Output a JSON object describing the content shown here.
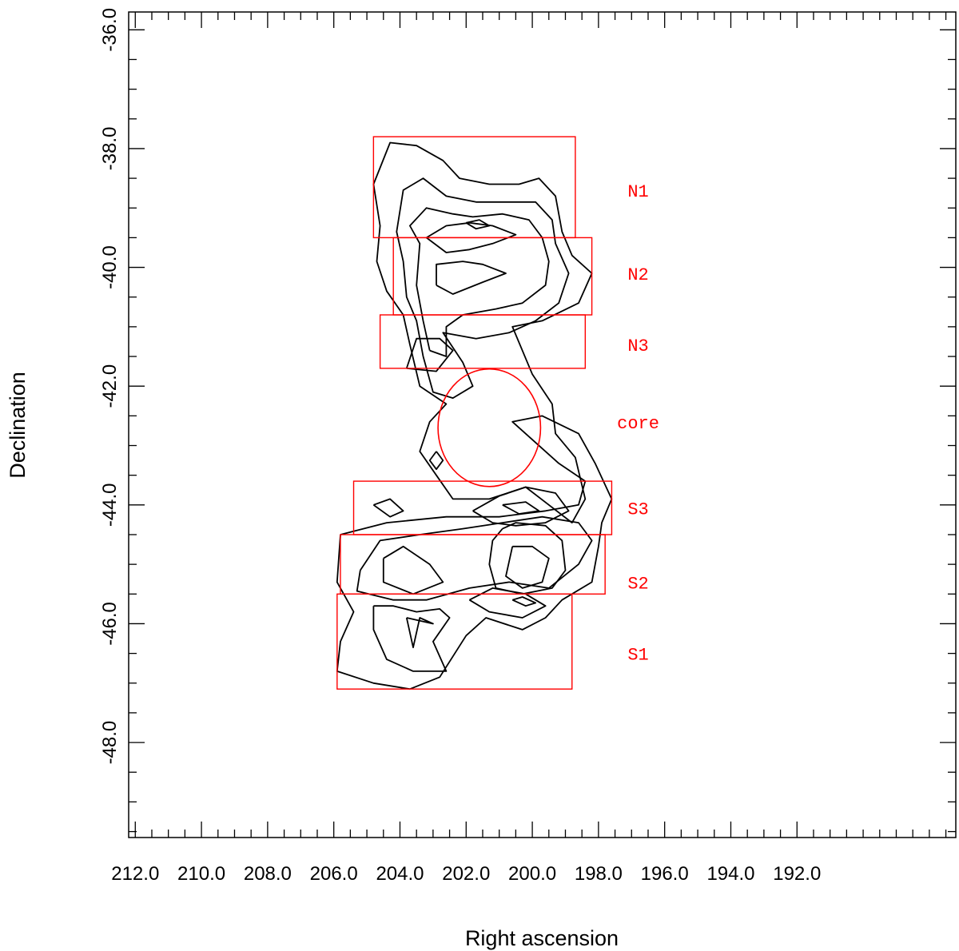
{
  "chart_data": {
    "type": "contour",
    "title": "",
    "xlabel": "Right ascension",
    "ylabel": "Declination",
    "xlim": [
      212.2,
      187.2
    ],
    "ylim": [
      -49.6,
      -35.7
    ],
    "x_reversed": true,
    "x_ticks_major": [
      212,
      210,
      208,
      206,
      204,
      202,
      200,
      198,
      196,
      194,
      192
    ],
    "x_tick_labels": [
      "212.0",
      "210.0",
      "208.0",
      "206.0",
      "204.0",
      "202.0",
      "200.0",
      "198.0",
      "196.0",
      "194.0",
      "192.0"
    ],
    "y_ticks_major": [
      -36,
      -38,
      -40,
      -42,
      -44,
      -46,
      -48
    ],
    "y_tick_labels": [
      "-36.0",
      "-38.0",
      "-40.0",
      "-42.0",
      "-44.0",
      "-46.0",
      "-48.0"
    ],
    "minor_tick_step": 0.5,
    "grid": false,
    "contour_color": "#000000",
    "region_color": "#ff0000",
    "regions": [
      {
        "label": "N1",
        "shape": "box",
        "ra": [
          204.8,
          198.7
        ],
        "dec": [
          -37.8,
          -39.5
        ]
      },
      {
        "label": "N2",
        "shape": "box",
        "ra": [
          204.2,
          198.2
        ],
        "dec": [
          -39.5,
          -40.8
        ]
      },
      {
        "label": "N3",
        "shape": "box",
        "ra": [
          204.6,
          198.4
        ],
        "dec": [
          -40.8,
          -41.7
        ]
      },
      {
        "label": "core",
        "shape": "circle",
        "center": [
          201.3,
          -42.7
        ],
        "radius_ra": 1.55,
        "radius_dec": 0.99
      },
      {
        "label": "S3",
        "shape": "box",
        "ra": [
          205.4,
          197.6
        ],
        "dec": [
          -43.6,
          -44.5
        ]
      },
      {
        "label": "S2",
        "shape": "box",
        "ra": [
          205.8,
          197.8
        ],
        "dec": [
          -44.5,
          -45.5
        ]
      },
      {
        "label": "S1",
        "shape": "box",
        "ra": [
          205.9,
          198.8
        ],
        "dec": [
          -45.5,
          -47.1
        ]
      }
    ],
    "region_label_ra": 196.8,
    "region_labels_dec": {
      "N1": -38.7,
      "N2": -40.1,
      "N3": -41.3,
      "core": -42.6,
      "S3": -44.05,
      "S2": -45.3,
      "S1": -46.5
    },
    "contours": [
      {
        "name": "north-outer",
        "points": [
          [
            203.7,
            -41.3
          ],
          [
            203.9,
            -40.8
          ],
          [
            204.4,
            -40.4
          ],
          [
            204.7,
            -39.9
          ],
          [
            204.6,
            -39.3
          ],
          [
            204.8,
            -38.6
          ],
          [
            204.3,
            -37.9
          ],
          [
            203.5,
            -37.95
          ],
          [
            202.7,
            -38.2
          ],
          [
            202.2,
            -38.5
          ],
          [
            201.3,
            -38.6
          ],
          [
            200.4,
            -38.6
          ],
          [
            199.8,
            -38.5
          ],
          [
            199.3,
            -38.8
          ],
          [
            199.1,
            -39.4
          ],
          [
            198.8,
            -39.8
          ],
          [
            198.2,
            -40.1
          ],
          [
            198.6,
            -40.6
          ],
          [
            199.7,
            -40.9
          ],
          [
            200.6,
            -41.0
          ],
          [
            200.0,
            -41.8
          ],
          [
            199.4,
            -42.3
          ],
          [
            199.3,
            -42.8
          ],
          [
            198.7,
            -43.2
          ],
          [
            198.4,
            -43.9
          ],
          [
            198.8,
            -44.3
          ],
          [
            199.5,
            -44.0
          ],
          [
            200.2,
            -43.7
          ],
          [
            201.3,
            -43.9
          ],
          [
            202.4,
            -43.9
          ],
          [
            202.9,
            -43.5
          ],
          [
            203.4,
            -43.1
          ],
          [
            203.1,
            -42.6
          ],
          [
            202.6,
            -42.3
          ],
          [
            203.4,
            -42.0
          ],
          [
            203.7,
            -41.3
          ]
        ]
      },
      {
        "name": "north-2",
        "points": [
          [
            203.3,
            -41.5
          ],
          [
            203.5,
            -40.9
          ],
          [
            203.8,
            -40.5
          ],
          [
            203.9,
            -39.9
          ],
          [
            204.1,
            -39.4
          ],
          [
            203.9,
            -38.7
          ],
          [
            203.3,
            -38.5
          ],
          [
            202.6,
            -38.8
          ],
          [
            201.7,
            -38.9
          ],
          [
            200.8,
            -38.9
          ],
          [
            199.9,
            -38.9
          ],
          [
            199.4,
            -39.2
          ],
          [
            199.3,
            -39.6
          ],
          [
            198.9,
            -40.1
          ],
          [
            199.2,
            -40.6
          ],
          [
            199.9,
            -40.9
          ],
          [
            200.7,
            -41.1
          ],
          [
            201.7,
            -41.2
          ],
          [
            202.7,
            -41.1
          ],
          [
            202.1,
            -41.6
          ],
          [
            201.8,
            -42.0
          ],
          [
            202.4,
            -42.2
          ],
          [
            203.0,
            -42.1
          ],
          [
            203.3,
            -41.5
          ]
        ]
      },
      {
        "name": "north-3",
        "points": [
          [
            203.1,
            -41.4
          ],
          [
            203.3,
            -40.9
          ],
          [
            203.5,
            -40.3
          ],
          [
            203.4,
            -39.6
          ],
          [
            203.7,
            -39.3
          ],
          [
            203.2,
            -39.0
          ],
          [
            202.4,
            -39.1
          ],
          [
            201.8,
            -39.15
          ],
          [
            200.9,
            -39.1
          ],
          [
            200.1,
            -39.2
          ],
          [
            199.7,
            -39.5
          ],
          [
            199.5,
            -39.9
          ],
          [
            199.6,
            -40.3
          ],
          [
            200.3,
            -40.6
          ],
          [
            201.1,
            -40.7
          ],
          [
            202.1,
            -40.8
          ],
          [
            202.6,
            -41.0
          ],
          [
            202.6,
            -41.5
          ],
          [
            203.1,
            -41.4
          ]
        ]
      },
      {
        "name": "north-4",
        "points": [
          [
            203.2,
            -39.5
          ],
          [
            202.6,
            -39.3
          ],
          [
            201.9,
            -39.25
          ],
          [
            201.2,
            -39.3
          ],
          [
            200.5,
            -39.45
          ],
          [
            201.2,
            -39.6
          ],
          [
            201.9,
            -39.7
          ],
          [
            202.6,
            -39.75
          ],
          [
            203.2,
            -39.5
          ]
        ]
      },
      {
        "name": "north-5",
        "points": [
          [
            202.9,
            -40.3
          ],
          [
            202.9,
            -39.95
          ],
          [
            202.1,
            -39.9
          ],
          [
            201.5,
            -39.95
          ],
          [
            200.8,
            -40.1
          ],
          [
            201.5,
            -40.25
          ],
          [
            202.4,
            -40.45
          ],
          [
            202.9,
            -40.3
          ]
        ]
      },
      {
        "name": "north-6",
        "points": [
          [
            203.8,
            -41.7
          ],
          [
            203.5,
            -41.2
          ],
          [
            202.8,
            -41.2
          ],
          [
            202.4,
            -41.4
          ],
          [
            202.9,
            -41.75
          ],
          [
            203.8,
            -41.7
          ]
        ]
      },
      {
        "name": "north-7",
        "points": [
          [
            202.0,
            -39.25
          ],
          [
            201.6,
            -39.2
          ],
          [
            201.3,
            -39.3
          ],
          [
            201.7,
            -39.35
          ],
          [
            202.0,
            -39.25
          ]
        ]
      },
      {
        "name": "south-outer",
        "points": [
          [
            205.8,
            -44.5
          ],
          [
            205.9,
            -45.3
          ],
          [
            205.4,
            -45.8
          ],
          [
            205.8,
            -46.3
          ],
          [
            205.9,
            -46.8
          ],
          [
            204.8,
            -47.0
          ],
          [
            203.7,
            -47.1
          ],
          [
            202.8,
            -46.9
          ],
          [
            202.0,
            -46.2
          ],
          [
            201.4,
            -45.9
          ],
          [
            200.3,
            -46.1
          ],
          [
            199.6,
            -45.9
          ],
          [
            199.1,
            -45.6
          ],
          [
            198.2,
            -45.3
          ],
          [
            198.0,
            -44.7
          ],
          [
            197.9,
            -44.3
          ],
          [
            197.6,
            -43.9
          ],
          [
            198.1,
            -43.3
          ],
          [
            198.6,
            -42.8
          ],
          [
            199.7,
            -42.5
          ],
          [
            200.6,
            -42.6
          ],
          [
            199.2,
            -43.3
          ],
          [
            198.4,
            -43.6
          ],
          [
            198.6,
            -44.0
          ],
          [
            199.6,
            -44.1
          ],
          [
            201.0,
            -44.2
          ],
          [
            202.6,
            -44.2
          ],
          [
            204.4,
            -44.3
          ],
          [
            205.8,
            -44.5
          ]
        ]
      },
      {
        "name": "south-2",
        "points": [
          [
            205.2,
            -45.1
          ],
          [
            205.3,
            -45.45
          ],
          [
            204.2,
            -45.6
          ],
          [
            203.2,
            -45.6
          ],
          [
            201.9,
            -45.4
          ],
          [
            200.7,
            -45.3
          ],
          [
            199.5,
            -45.4
          ],
          [
            198.6,
            -45.0
          ],
          [
            198.2,
            -44.6
          ],
          [
            198.6,
            -44.3
          ],
          [
            199.7,
            -44.2
          ],
          [
            200.9,
            -44.3
          ],
          [
            202.1,
            -44.4
          ],
          [
            203.4,
            -44.5
          ],
          [
            204.6,
            -44.6
          ],
          [
            205.2,
            -45.1
          ]
        ]
      },
      {
        "name": "south-3",
        "points": [
          [
            200.9,
            -44.4
          ],
          [
            200.5,
            -44.3
          ],
          [
            199.6,
            -44.35
          ],
          [
            199.1,
            -44.6
          ],
          [
            199.0,
            -45.1
          ],
          [
            199.4,
            -45.4
          ],
          [
            200.3,
            -45.5
          ],
          [
            201.1,
            -45.4
          ],
          [
            201.3,
            -45.0
          ],
          [
            201.2,
            -44.6
          ],
          [
            200.9,
            -44.4
          ]
        ]
      },
      {
        "name": "south-4",
        "points": [
          [
            200.6,
            -44.7
          ],
          [
            200.0,
            -44.7
          ],
          [
            199.5,
            -44.9
          ],
          [
            199.7,
            -45.3
          ],
          [
            200.3,
            -45.4
          ],
          [
            200.8,
            -45.2
          ],
          [
            200.6,
            -44.7
          ]
        ]
      },
      {
        "name": "south-5",
        "points": [
          [
            201.8,
            -44.1
          ],
          [
            201.2,
            -44.3
          ],
          [
            200.5,
            -44.35
          ],
          [
            199.6,
            -44.3
          ],
          [
            198.9,
            -44.1
          ],
          [
            199.3,
            -43.8
          ],
          [
            200.2,
            -43.7
          ],
          [
            201.0,
            -43.85
          ],
          [
            201.8,
            -44.1
          ]
        ]
      },
      {
        "name": "south-6",
        "points": [
          [
            200.9,
            -44.0
          ],
          [
            200.4,
            -44.15
          ],
          [
            199.8,
            -44.1
          ],
          [
            200.2,
            -43.95
          ],
          [
            200.9,
            -44.0
          ]
        ]
      },
      {
        "name": "south-7",
        "points": [
          [
            204.8,
            -44.0
          ],
          [
            204.3,
            -43.9
          ],
          [
            203.9,
            -44.1
          ],
          [
            204.3,
            -44.2
          ],
          [
            204.8,
            -44.0
          ]
        ]
      },
      {
        "name": "south-8",
        "points": [
          [
            204.5,
            -44.9
          ],
          [
            203.9,
            -44.7
          ],
          [
            203.1,
            -45.0
          ],
          [
            202.7,
            -45.3
          ],
          [
            203.6,
            -45.5
          ],
          [
            204.5,
            -45.3
          ],
          [
            204.5,
            -44.9
          ]
        ]
      },
      {
        "name": "south-9",
        "points": [
          [
            204.8,
            -45.7
          ],
          [
            204.2,
            -45.7
          ],
          [
            203.5,
            -45.8
          ],
          [
            202.8,
            -45.75
          ],
          [
            202.5,
            -45.9
          ],
          [
            203.0,
            -46.3
          ],
          [
            202.6,
            -46.8
          ],
          [
            203.6,
            -46.8
          ],
          [
            204.4,
            -46.6
          ],
          [
            204.8,
            -46.1
          ],
          [
            204.8,
            -45.7
          ]
        ]
      },
      {
        "name": "south-10",
        "points": [
          [
            203.8,
            -45.9
          ],
          [
            203.6,
            -46.4
          ],
          [
            203.4,
            -45.9
          ],
          [
            203.0,
            -46.0
          ],
          [
            203.8,
            -45.9
          ]
        ]
      },
      {
        "name": "south-11",
        "points": [
          [
            201.9,
            -45.6
          ],
          [
            201.3,
            -45.8
          ],
          [
            200.3,
            -45.9
          ],
          [
            199.6,
            -45.7
          ],
          [
            200.2,
            -45.5
          ],
          [
            201.2,
            -45.4
          ],
          [
            201.9,
            -45.6
          ]
        ]
      },
      {
        "name": "south-12",
        "points": [
          [
            200.6,
            -45.6
          ],
          [
            200.2,
            -45.7
          ],
          [
            199.9,
            -45.65
          ],
          [
            200.3,
            -45.55
          ],
          [
            200.6,
            -45.6
          ]
        ]
      },
      {
        "name": "diamond",
        "points": [
          [
            202.9,
            -43.1
          ],
          [
            202.7,
            -43.25
          ],
          [
            202.9,
            -43.4
          ],
          [
            203.1,
            -43.25
          ],
          [
            202.9,
            -43.1
          ]
        ]
      }
    ]
  }
}
